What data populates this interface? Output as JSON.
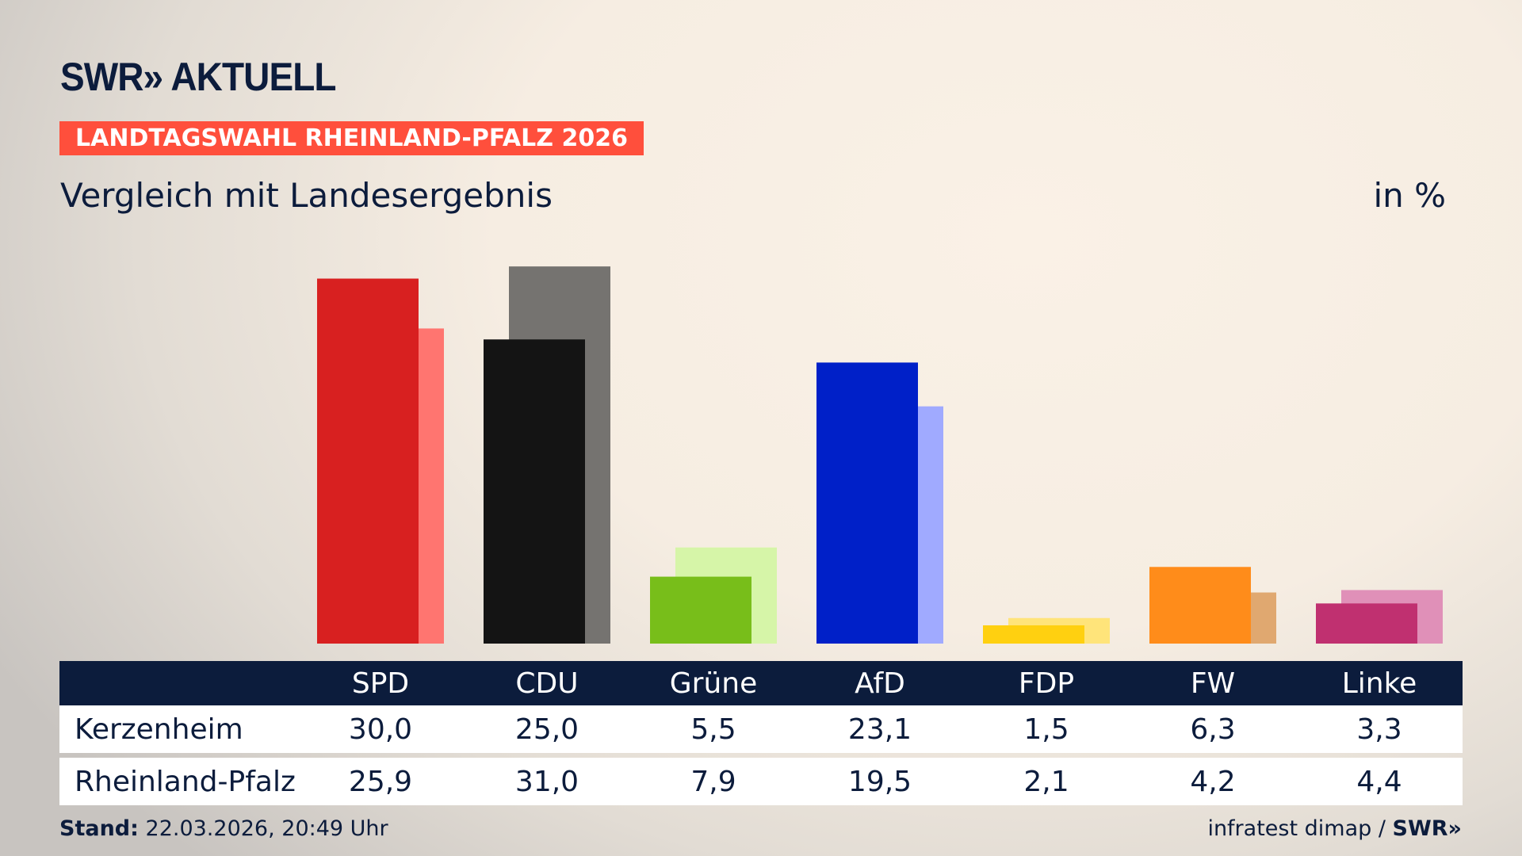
{
  "header": {
    "logo": "SWR» AKTUELL",
    "banner": "LANDTAGSWAHL RHEINLAND-PFALZ 2026",
    "subtitle": "Vergleich mit Landesergebnis",
    "unit": "in %"
  },
  "chart_data": {
    "type": "bar",
    "categories": [
      "SPD",
      "CDU",
      "Grüne",
      "AfD",
      "FDP",
      "FW",
      "Linke"
    ],
    "series": [
      {
        "name": "Kerzenheim",
        "values": [
          30.0,
          25.0,
          5.5,
          23.1,
          1.5,
          6.3,
          3.3
        ],
        "colors": [
          "#d82020",
          "#141414",
          "#78be1a",
          "#0020c8",
          "#ffd010",
          "#ff8c1a",
          "#c03070"
        ]
      },
      {
        "name": "Rheinland-Pfalz",
        "values": [
          25.9,
          31.0,
          7.9,
          19.5,
          2.1,
          4.2,
          4.4
        ],
        "colors": [
          "#ff7570",
          "#757370",
          "#d6f5a8",
          "#a0aaff",
          "#ffe47a",
          "#e0a870",
          "#e090b8"
        ]
      }
    ],
    "display": {
      "Kerzenheim": [
        "30,0",
        "25,0",
        "5,5",
        "23,1",
        "1,5",
        "6,3",
        "3,3"
      ],
      "Rheinland-Pfalz": [
        "25,9",
        "31,0",
        "7,9",
        "19,5",
        "2,1",
        "4,2",
        "4,4"
      ]
    }
  },
  "footer": {
    "stand_label": "Stand:",
    "stand_value": "22.03.2026, 20:49 Uhr",
    "source": "infratest dimap / ",
    "source_logo": "SWR»"
  }
}
